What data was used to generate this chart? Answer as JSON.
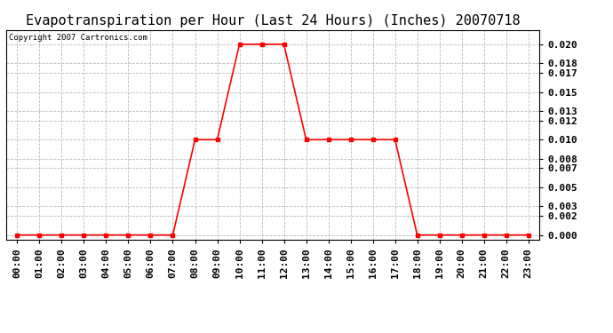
{
  "title": "Evapotranspiration per Hour (Last 24 Hours) (Inches) 20070718",
  "copyright": "Copyright 2007 Cartronics.com",
  "hours": [
    "00:00",
    "01:00",
    "02:00",
    "03:00",
    "04:00",
    "05:00",
    "06:00",
    "07:00",
    "08:00",
    "09:00",
    "10:00",
    "11:00",
    "12:00",
    "13:00",
    "14:00",
    "15:00",
    "16:00",
    "17:00",
    "18:00",
    "19:00",
    "20:00",
    "21:00",
    "22:00",
    "23:00"
  ],
  "values": [
    0.0,
    0.0,
    0.0,
    0.0,
    0.0,
    0.0,
    0.0,
    0.0,
    0.01,
    0.01,
    0.02,
    0.02,
    0.02,
    0.01,
    0.01,
    0.01,
    0.01,
    0.01,
    0.0,
    0.0,
    0.0,
    0.0,
    0.0,
    0.0
  ],
  "yticks": [
    0.0,
    0.002,
    0.003,
    0.005,
    0.007,
    0.008,
    0.01,
    0.012,
    0.013,
    0.015,
    0.017,
    0.018,
    0.02
  ],
  "line_color": "#ff0000",
  "marker": "s",
  "marker_size": 3,
  "background_color": "#ffffff",
  "grid_color": "#bbbbbb",
  "title_fontsize": 11,
  "tick_fontsize": 8,
  "copyright_fontsize": 6.5,
  "ylim": [
    -0.0005,
    0.0215
  ]
}
